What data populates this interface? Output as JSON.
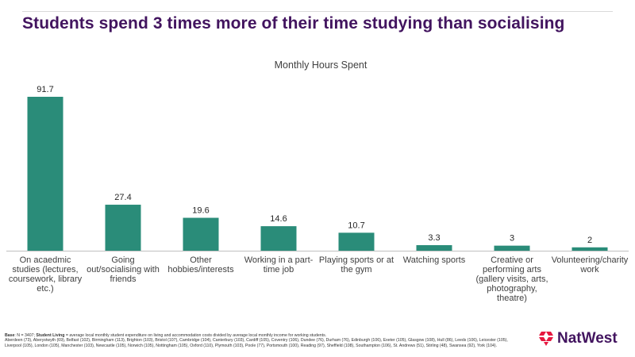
{
  "page": {
    "title": "Students spend 3 times more of their time studying than socialising"
  },
  "chart_data": {
    "type": "bar",
    "title": "Monthly Hours Spent",
    "categories": [
      "On acaedmic studies (lectures, coursework, library etc.)",
      "Going out/socialising with friends",
      "Other hobbies/interests",
      "Working in a part-time job",
      "Playing sports or at the gym",
      "Watching sports",
      "Creative or performing arts (gallery visits, arts, photography, theatre)",
      "Volunteering/charity work"
    ],
    "category_lines": [
      [
        "On acaedmic",
        "studies (lectures,",
        "coursework, library",
        "etc.)"
      ],
      [
        "Going",
        "out/socialising with",
        "friends"
      ],
      [
        "Other",
        "hobbies/interests"
      ],
      [
        "Working in a part-",
        "time job"
      ],
      [
        "Playing sports or at",
        "the gym"
      ],
      [
        "Watching sports"
      ],
      [
        "Creative or",
        "performing arts",
        "(gallery visits, arts,",
        "photography,",
        "theatre)"
      ],
      [
        "Volunteering/charity",
        "work"
      ]
    ],
    "values": [
      91.7,
      27.4,
      19.6,
      14.6,
      10.7,
      3.3,
      3,
      2
    ],
    "value_labels": [
      "91.7",
      "27.4",
      "19.6",
      "14.6",
      "10.7",
      "3.3",
      "3",
      "2"
    ],
    "xlabel": "",
    "ylabel": "",
    "ylim": [
      0,
      100
    ],
    "grid": false,
    "legend": "none",
    "bar_color": "#2a8c79",
    "axis_color": "#bfbfbf"
  },
  "footnote": {
    "base_label": "Base",
    "base_text": ": N = 3407; ",
    "student_living_label": "Student Living",
    "student_living_text": " = average local monthly student expenditure on living and accommodation costs divided by average local monthly income for working students.",
    "cities_text": "Aberdeen (73), Aberystwyth (69), Belfast (102), Birmingham (113), Brighton (103), Bristol (107), Cambridge (104), Canterbury (103), Cardiff (105), Coventry (106), Dundee (76), Durham (76), Edinburgh (106), Exeter (105), Glasgow (108), Hull (86), Leeds (106), Leicester (105), Liverpool (105), London (105), Manchester (103), Newcastle (105), Norwich (105), Nottingham (105), Oxford (110), Plymouth (103), Poole (77), Portsmouth (100), Reading (97), Sheffield (108), Southampton (106), St. Andrews (51), Stirling (48), Swansea (92), York (104)."
  },
  "brand": {
    "name": "NatWest",
    "logo_color": "#e6173f",
    "text_color": "#42145f"
  }
}
